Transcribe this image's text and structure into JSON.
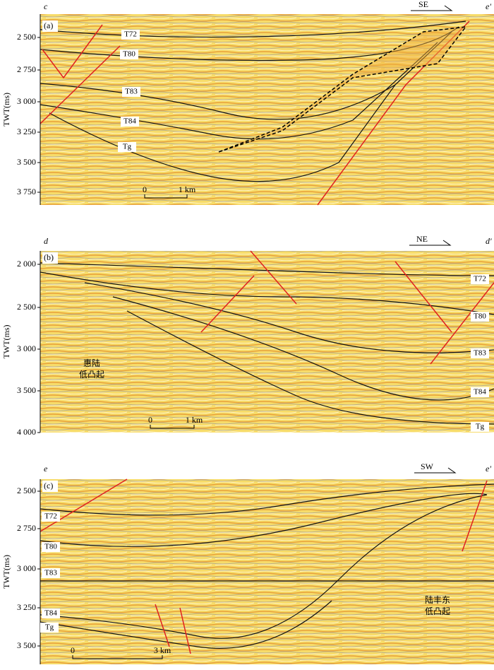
{
  "panels": [
    {
      "label": "(a)",
      "corner_left": "c",
      "corner_right": "e'",
      "direction": "SE",
      "axis_title": "TWT(ms)",
      "yticks": [
        "2 500",
        "2 750",
        "3 000",
        "3 250",
        "3 500",
        "3 750"
      ],
      "horizons": [
        "T72",
        "T80",
        "T83",
        "T84",
        "Tg"
      ],
      "scale_bar": [
        "0",
        "1 km"
      ]
    },
    {
      "label": "(b)",
      "corner_left": "d",
      "corner_right": "d'",
      "direction": "NE",
      "axis_title": "TWT(ms)",
      "yticks": [
        "2 000",
        "2 500",
        "3 000",
        "3 500",
        "4 000"
      ],
      "horizons": [
        "T72",
        "T80",
        "T83",
        "T84",
        "Tg"
      ],
      "scale_bar": [
        "0",
        "1 km"
      ],
      "annotation": [
        "惠陆",
        "低凸起"
      ]
    },
    {
      "label": "(c)",
      "corner_left": "e",
      "corner_right": "e'",
      "direction": "SW",
      "axis_title": "TWT(ms)",
      "yticks": [
        "2 500",
        "2 750",
        "3 000",
        "3 250",
        "3 500"
      ],
      "horizons": [
        "T72",
        "T80",
        "T83",
        "T84",
        "Tg"
      ],
      "scale_bar": [
        "0",
        "3 km"
      ],
      "annotation": [
        "陆丰东",
        "低凸起"
      ]
    }
  ]
}
